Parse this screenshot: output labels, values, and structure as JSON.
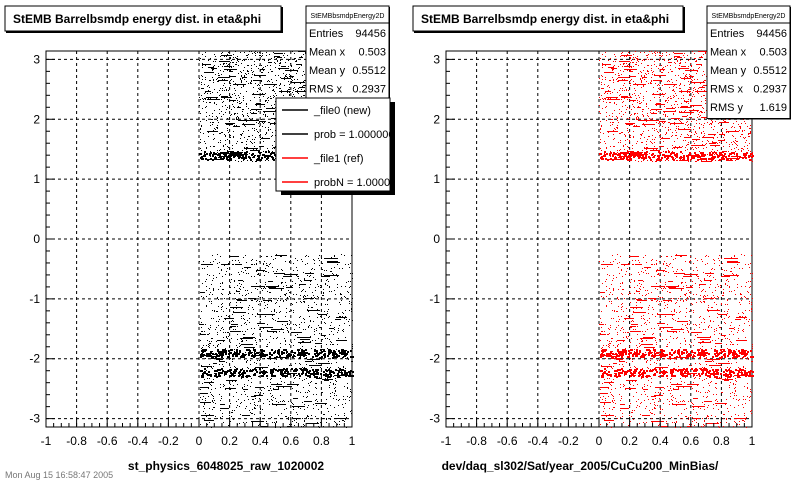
{
  "chart_data": [
    {
      "type": "scatter",
      "title": "StEMB Barrelbsmdp energy dist. in eta&phi",
      "xlabel": "st_physics_6048025_raw_1020002",
      "ylabel": "",
      "xlim": [
        -1,
        1
      ],
      "ylim": [
        -3.14,
        3.14
      ],
      "x_ticks": [
        "-1",
        "-0.8",
        "-0.6",
        "-0.4",
        "-0.2",
        "0",
        "0.2",
        "0.4",
        "0.6",
        "0.8",
        "1"
      ],
      "y_ticks": [
        "-3",
        "-2",
        "-1",
        "0",
        "1",
        "2",
        "3"
      ],
      "grid": true,
      "marker_color": "#000000",
      "density_regions": [
        {
          "x": [
            0.0,
            1.0
          ],
          "y": [
            1.3,
            3.14
          ]
        },
        {
          "x": [
            0.0,
            1.0
          ],
          "y": [
            -3.14,
            -0.25
          ]
        }
      ],
      "dense_bands_y": [
        1.4,
        -1.9,
        -2.22
      ],
      "stats": {
        "name": "StEMBbsmdpEnergy2D",
        "rows": [
          {
            "label": "Entries",
            "value": "94456"
          },
          {
            "label": "Mean x",
            "value": "0.503"
          },
          {
            "label": "Mean y",
            "value": "0.5512"
          },
          {
            "label": "RMS x",
            "value": "0.2937"
          }
        ]
      },
      "legend": {
        "placement": "top-right",
        "entries": [
          {
            "label": "_file0 (new)",
            "color": "#000000"
          },
          {
            "label": "prob = 1.000000",
            "color": "#000000"
          },
          {
            "label": "_file1 (ref)",
            "color": "#ff0000"
          },
          {
            "label": "probN = 1.000000",
            "color": "#ff0000"
          }
        ]
      },
      "footer_text": "Mon Aug 15 16:58:47 2005"
    },
    {
      "type": "scatter",
      "title": "StEMB Barrelbsmdp energy dist. in eta&phi",
      "xlabel": "dev/daq_sl302/Sat/year_2005/CuCu200_MinBias/",
      "ylabel": "",
      "xlim": [
        -1,
        1
      ],
      "ylim": [
        -3.14,
        3.14
      ],
      "x_ticks": [
        "-1",
        "-0.8",
        "-0.6",
        "-0.4",
        "-0.2",
        "0",
        "0.2",
        "0.4",
        "0.6",
        "0.8",
        "1"
      ],
      "y_ticks": [
        "-3",
        "-2",
        "-1",
        "0",
        "1",
        "2",
        "3"
      ],
      "grid": true,
      "marker_color": "#ff0000",
      "density_regions": [
        {
          "x": [
            0.0,
            1.0
          ],
          "y": [
            1.3,
            3.14
          ]
        },
        {
          "x": [
            0.0,
            1.0
          ],
          "y": [
            -3.14,
            -0.25
          ]
        }
      ],
      "dense_bands_y": [
        1.4,
        -1.9,
        -2.22
      ],
      "stats": {
        "name": "StEMBbsmdpEnergy2D",
        "rows": [
          {
            "label": "Entries",
            "value": "94456"
          },
          {
            "label": "Mean x",
            "value": "0.503"
          },
          {
            "label": "Mean y",
            "value": "0.5512"
          },
          {
            "label": "RMS x",
            "value": "0.2937"
          },
          {
            "label": "RMS y",
            "value": "1.619"
          }
        ]
      }
    }
  ]
}
